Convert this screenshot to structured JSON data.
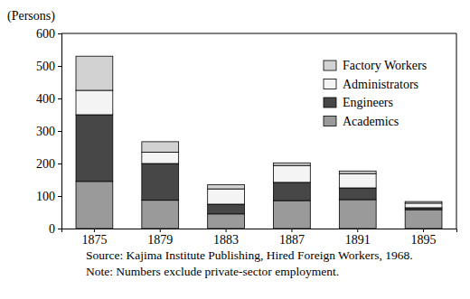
{
  "chart_data": {
    "type": "bar",
    "stacked": true,
    "ylabel": "(Persons)",
    "categories": [
      "1875",
      "1879",
      "1883",
      "1887",
      "1891",
      "1895"
    ],
    "series": [
      {
        "name": "Academics",
        "color": "#9a9a9a",
        "values": [
          145,
          87,
          45,
          86,
          89,
          58
        ]
      },
      {
        "name": "Engineers",
        "color": "#474747",
        "values": [
          205,
          113,
          30,
          56,
          36,
          6
        ]
      },
      {
        "name": "Administrators",
        "color": "#f4f4f4",
        "values": [
          75,
          35,
          47,
          52,
          44,
          14
        ]
      },
      {
        "name": "Factory Workers",
        "color": "#d2d2d2",
        "values": [
          105,
          32,
          13,
          8,
          8,
          5
        ]
      }
    ],
    "ylim": [
      0,
      600
    ],
    "yticks": [
      0,
      100,
      200,
      300,
      400,
      500,
      600
    ],
    "legend": "upper right",
    "grid": false,
    "annotations": [
      "Source: Kajima Institute Publishing, Hired Foreign Workers, 1968.",
      "Note: Numbers exclude private-sector employment."
    ]
  }
}
